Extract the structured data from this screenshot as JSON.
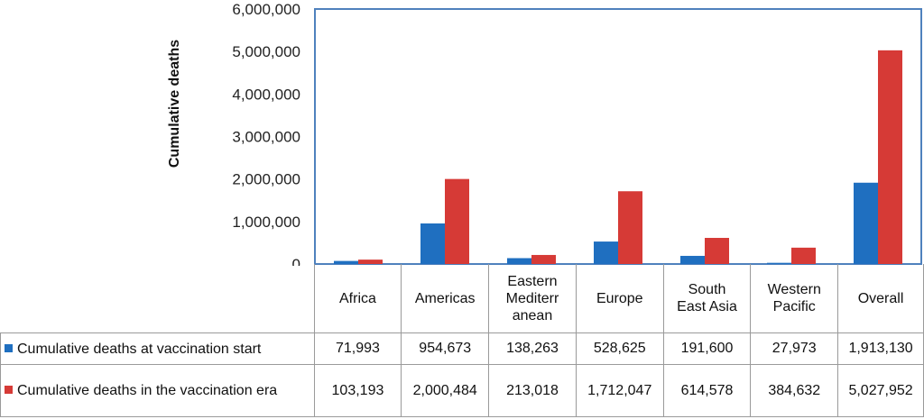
{
  "chart_data": {
    "type": "bar",
    "ylabel": "Cumulative deaths",
    "ylim": [
      0,
      6000000
    ],
    "yticks": [
      "0",
      "1,000,000",
      "2,000,000",
      "3,000,000",
      "4,000,000",
      "5,000,000",
      "6,000,000"
    ],
    "categories": [
      "Africa",
      "Americas",
      "Eastern\nMediterr\nanean",
      "Europe",
      "South\nEast Asia",
      "Western\nPacific",
      "Overall"
    ],
    "series": [
      {
        "name": "Cumulative deaths at vaccination start",
        "color": "#1f6fc0",
        "values": [
          71993,
          954673,
          138263,
          528625,
          191600,
          27973,
          1913130
        ],
        "labels": [
          "71,993",
          "954,673",
          "138,263",
          "528,625",
          "191,600",
          "27,973",
          "1,913,130"
        ]
      },
      {
        "name": "Cumulative deaths in the vaccination era",
        "color": "#d63a36",
        "values": [
          103193,
          2000484,
          213018,
          1712047,
          614578,
          384632,
          5027952
        ],
        "labels": [
          "103,193",
          "2,000,484",
          "213,018",
          "1,712,047",
          "614,578",
          "384,632",
          "5,027,952"
        ]
      }
    ],
    "legend_position": "data-table-left",
    "grid": false
  }
}
